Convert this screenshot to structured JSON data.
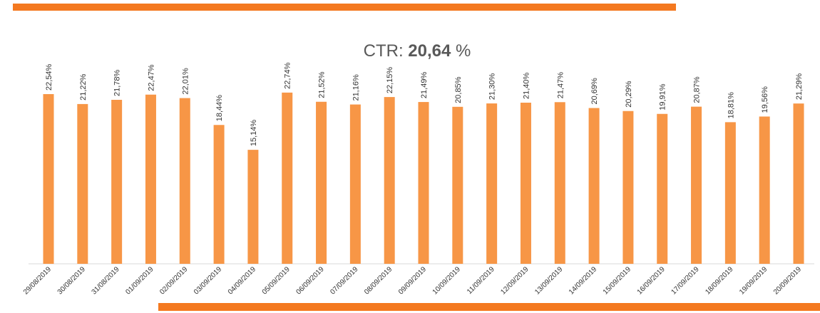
{
  "chart_data": {
    "type": "bar",
    "title": [
      "CTR:",
      "20,64",
      "%"
    ],
    "categories": [
      "29/08/2019",
      "30/08/2019",
      "31/08/2019",
      "01/09/2019",
      "02/09/2019",
      "03/09/2019",
      "04/09/2019",
      "05/09/2019",
      "06/09/2019",
      "07/09/2019",
      "08/09/2019",
      "09/09/2019",
      "10/09/2019",
      "11/09/2019",
      "12/09/2019",
      "13/09/2019",
      "14/09/2019",
      "15/09/2019",
      "16/09/2019",
      "17/09/2019",
      "18/09/2019",
      "19/09/2019",
      "20/09/2019"
    ],
    "values": [
      22.54,
      21.22,
      21.78,
      22.47,
      22.01,
      18.44,
      15.14,
      22.74,
      21.52,
      21.16,
      22.15,
      21.49,
      20.85,
      21.3,
      21.4,
      21.47,
      20.69,
      20.29,
      19.91,
      20.87,
      18.81,
      19.56,
      21.29
    ],
    "value_labels": [
      "22,54%",
      "21,22%",
      "21,78%",
      "22,47%",
      "22,01%",
      "18,44%",
      "15,14%",
      "22,74%",
      "21,52%",
      "21,16%",
      "22,15%",
      "21,49%",
      "20,85%",
      "21,30%",
      "21,40%",
      "21,47%",
      "20,69%",
      "20,29%",
      "19,91%",
      "20,87%",
      "18,81%",
      "19,56%",
      "21,29%"
    ],
    "color": "#f79646",
    "ylim": [
      0,
      25
    ]
  }
}
